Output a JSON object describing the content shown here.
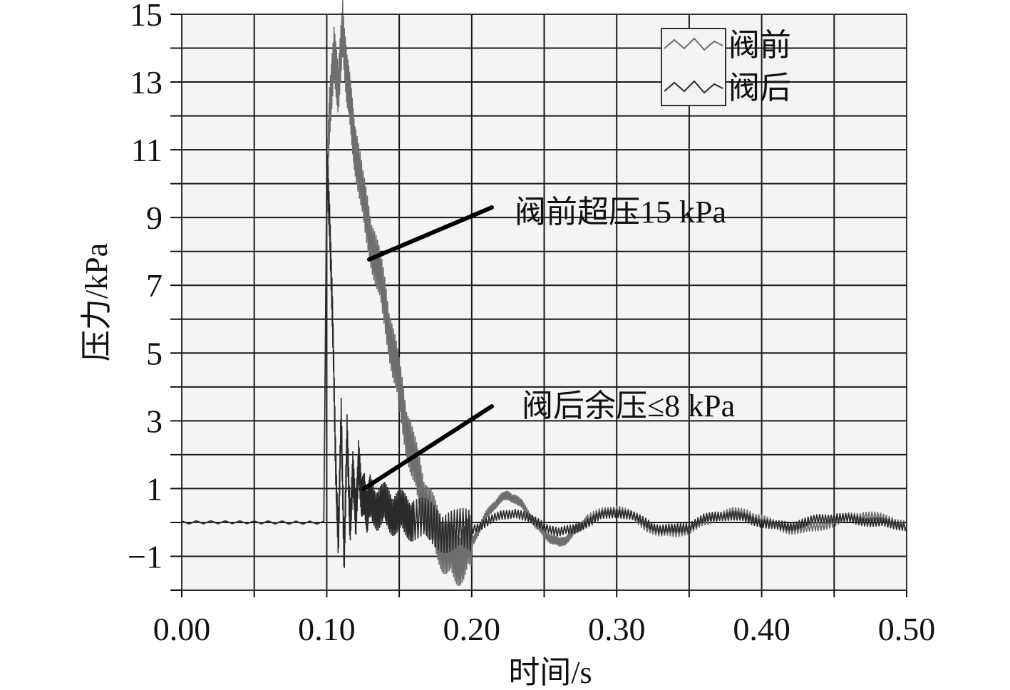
{
  "chart_data": {
    "type": "line",
    "title": "",
    "xlabel": "时间/s",
    "ylabel": "压力/kPa",
    "xlim": [
      0.0,
      0.5
    ],
    "ylim": [
      -2,
      15
    ],
    "x_ticks": [
      0.0,
      0.05,
      0.1,
      0.15,
      0.2,
      0.25,
      0.3,
      0.35,
      0.4,
      0.45,
      0.5
    ],
    "x_tick_labels": [
      "0.00",
      "",
      "0.10",
      "",
      "0.20",
      "",
      "0.30",
      "",
      "0.40",
      "",
      "0.50"
    ],
    "y_ticks": [
      -2,
      -1,
      0,
      1,
      2,
      3,
      4,
      5,
      6,
      7,
      8,
      9,
      10,
      11,
      12,
      13,
      14,
      15
    ],
    "y_tick_labels": [
      "",
      "−1",
      "",
      "1",
      "",
      "3",
      "",
      "5",
      "",
      "7",
      "",
      "9",
      "",
      "11",
      "",
      "13",
      "",
      "15"
    ],
    "grid": true,
    "legend_position": "top-right",
    "series": [
      {
        "name": "阀前",
        "color": "#6e6e6e",
        "x": [
          0.0,
          0.05,
          0.098,
          0.1,
          0.102,
          0.105,
          0.108,
          0.111,
          0.114,
          0.117,
          0.12,
          0.125,
          0.13,
          0.135,
          0.14,
          0.145,
          0.15,
          0.155,
          0.16,
          0.165,
          0.17,
          0.175,
          0.18,
          0.185,
          0.19,
          0.195,
          0.2,
          0.205,
          0.21,
          0.215,
          0.22,
          0.225,
          0.23,
          0.235,
          0.24,
          0.245,
          0.25,
          0.255,
          0.26,
          0.265,
          0.27,
          0.275,
          0.28,
          0.29,
          0.3,
          0.31,
          0.32,
          0.33,
          0.34,
          0.35,
          0.36,
          0.37,
          0.38,
          0.39,
          0.4,
          0.41,
          0.42,
          0.43,
          0.44,
          0.45,
          0.46,
          0.47,
          0.48,
          0.49,
          0.5
        ],
        "values": [
          0.0,
          0.0,
          0.0,
          9.5,
          12.0,
          14.1,
          12.5,
          14.8,
          13.0,
          12.0,
          11.0,
          9.5,
          8.5,
          7.5,
          6.5,
          5.2,
          4.0,
          2.8,
          1.8,
          1.0,
          0.3,
          -0.2,
          -0.6,
          -0.9,
          -1.0,
          -0.9,
          -0.6,
          -0.2,
          0.2,
          0.5,
          0.7,
          0.8,
          0.7,
          0.5,
          0.2,
          -0.1,
          -0.3,
          -0.5,
          -0.6,
          -0.5,
          -0.3,
          -0.1,
          0.1,
          0.3,
          0.4,
          0.2,
          -0.1,
          -0.3,
          -0.3,
          -0.2,
          0.0,
          0.2,
          0.3,
          0.25,
          0.1,
          -0.1,
          -0.2,
          -0.2,
          -0.1,
          0.0,
          0.15,
          0.2,
          0.15,
          0.05,
          -0.1
        ]
      },
      {
        "name": "阀后",
        "color": "#2a2a2a",
        "x": [
          0.0,
          0.05,
          0.098,
          0.1,
          0.102,
          0.104,
          0.106,
          0.108,
          0.11,
          0.112,
          0.114,
          0.116,
          0.118,
          0.12,
          0.122,
          0.124,
          0.126,
          0.128,
          0.13,
          0.135,
          0.14,
          0.145,
          0.15,
          0.155,
          0.16,
          0.17,
          0.18,
          0.19,
          0.2,
          0.21,
          0.22,
          0.23,
          0.24,
          0.25,
          0.26,
          0.27,
          0.28,
          0.29,
          0.3,
          0.31,
          0.32,
          0.33,
          0.34,
          0.35,
          0.36,
          0.37,
          0.38,
          0.39,
          0.4,
          0.41,
          0.42,
          0.43,
          0.44,
          0.45,
          0.46,
          0.47,
          0.48,
          0.49,
          0.5
        ],
        "values": [
          0.0,
          0.0,
          0.0,
          10.5,
          9.0,
          6.0,
          2.0,
          -0.5,
          3.0,
          -1.0,
          2.5,
          0.0,
          1.5,
          0.0,
          2.0,
          0.5,
          1.0,
          0.2,
          0.8,
          0.4,
          0.5,
          0.3,
          0.3,
          0.2,
          0.1,
          0.0,
          -0.2,
          -0.3,
          -0.2,
          0.0,
          0.2,
          0.3,
          0.1,
          -0.1,
          -0.3,
          -0.2,
          0.0,
          0.2,
          0.3,
          0.2,
          0.0,
          -0.2,
          -0.2,
          -0.1,
          0.1,
          0.2,
          0.2,
          0.1,
          0.0,
          -0.1,
          -0.1,
          0.0,
          0.1,
          0.15,
          0.1,
          0.05,
          0.0,
          -0.05,
          -0.1
        ]
      }
    ],
    "annotations": [
      {
        "text": "阀前超压15 kPa",
        "points_to": {
          "x": 0.13,
          "y": 7.8
        }
      },
      {
        "text": "阀后余压≤8 kPa",
        "points_to": {
          "x": 0.125,
          "y": 1.0
        }
      }
    ]
  }
}
